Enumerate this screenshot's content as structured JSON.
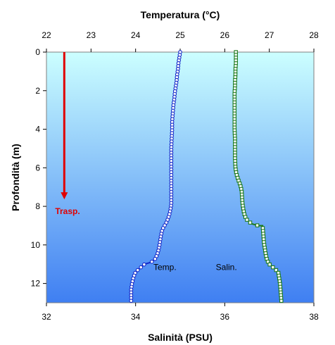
{
  "chart_data": {
    "type": "line",
    "top_axis": {
      "label": "Temperatura (°C)",
      "range": [
        22,
        28
      ],
      "ticks": [
        22,
        23,
        24,
        25,
        26,
        27,
        28
      ]
    },
    "bottom_axis": {
      "label": "Salinità (PSU)",
      "range": [
        32,
        38
      ],
      "ticks": [
        32,
        34,
        36,
        38
      ]
    },
    "left_axis": {
      "label": "Profondità (m)",
      "range": [
        0,
        13
      ],
      "inverted": true,
      "ticks": [
        0,
        2,
        4,
        6,
        8,
        10,
        12
      ]
    },
    "colors": {
      "temperature": "#1428c8",
      "salinity": "#1e7a1e",
      "arrow": "#e00000",
      "bg_top": "#ccffff",
      "bg_bottom": "#3f7ff2"
    },
    "series": [
      {
        "name": "Temp.",
        "axis": "top",
        "marker": "circle",
        "points": [
          [
            25.0,
            0.0
          ],
          [
            24.98,
            0.3
          ],
          [
            24.96,
            0.6
          ],
          [
            24.95,
            0.9
          ],
          [
            24.93,
            1.2
          ],
          [
            24.92,
            1.5
          ],
          [
            24.9,
            1.8
          ],
          [
            24.88,
            2.1
          ],
          [
            24.87,
            2.4
          ],
          [
            24.85,
            2.7
          ],
          [
            24.84,
            3.0
          ],
          [
            24.83,
            3.3
          ],
          [
            24.82,
            3.6
          ],
          [
            24.82,
            4.0
          ],
          [
            24.81,
            4.5
          ],
          [
            24.8,
            5.0
          ],
          [
            24.8,
            5.5
          ],
          [
            24.8,
            6.0
          ],
          [
            24.8,
            6.5
          ],
          [
            24.8,
            7.0
          ],
          [
            24.8,
            7.3
          ],
          [
            24.8,
            7.6
          ],
          [
            24.8,
            7.9
          ],
          [
            24.78,
            8.2
          ],
          [
            24.75,
            8.5
          ],
          [
            24.7,
            8.8
          ],
          [
            24.65,
            9.0
          ],
          [
            24.6,
            9.2
          ],
          [
            24.57,
            9.5
          ],
          [
            24.55,
            9.8
          ],
          [
            24.53,
            10.1
          ],
          [
            24.5,
            10.4
          ],
          [
            24.45,
            10.7
          ],
          [
            24.35,
            10.9
          ],
          [
            24.2,
            11.0
          ],
          [
            24.1,
            11.2
          ],
          [
            24.0,
            11.4
          ],
          [
            23.95,
            11.7
          ],
          [
            23.92,
            12.0
          ],
          [
            23.9,
            12.3
          ],
          [
            23.9,
            12.6
          ],
          [
            23.9,
            12.9
          ]
        ],
        "label_text": "Temp."
      },
      {
        "name": "Salin.",
        "axis": "bottom",
        "marker": "square",
        "points": [
          [
            36.25,
            0.0
          ],
          [
            36.25,
            0.3
          ],
          [
            36.25,
            0.6
          ],
          [
            36.24,
            0.9
          ],
          [
            36.24,
            1.2
          ],
          [
            36.23,
            1.5
          ],
          [
            36.23,
            1.8
          ],
          [
            36.22,
            2.1
          ],
          [
            36.22,
            2.4
          ],
          [
            36.22,
            2.7
          ],
          [
            36.22,
            3.0
          ],
          [
            36.22,
            3.3
          ],
          [
            36.22,
            3.6
          ],
          [
            36.22,
            4.0
          ],
          [
            36.23,
            4.5
          ],
          [
            36.23,
            5.0
          ],
          [
            36.23,
            5.5
          ],
          [
            36.24,
            6.0
          ],
          [
            36.26,
            6.3
          ],
          [
            36.3,
            6.6
          ],
          [
            36.35,
            6.9
          ],
          [
            36.38,
            7.2
          ],
          [
            36.39,
            7.6
          ],
          [
            36.4,
            7.9
          ],
          [
            36.42,
            8.2
          ],
          [
            36.45,
            8.5
          ],
          [
            36.5,
            8.7
          ],
          [
            36.6,
            8.9
          ],
          [
            36.75,
            9.0
          ],
          [
            36.85,
            9.0
          ],
          [
            36.86,
            9.3
          ],
          [
            36.87,
            9.6
          ],
          [
            36.88,
            9.9
          ],
          [
            36.9,
            10.2
          ],
          [
            36.92,
            10.5
          ],
          [
            36.95,
            10.8
          ],
          [
            37.0,
            11.0
          ],
          [
            37.1,
            11.2
          ],
          [
            37.2,
            11.4
          ],
          [
            37.22,
            11.7
          ],
          [
            37.24,
            12.0
          ],
          [
            37.25,
            12.3
          ],
          [
            37.26,
            12.6
          ],
          [
            37.27,
            12.9
          ]
        ],
        "label_text": "Salin."
      }
    ],
    "annotations": [
      {
        "text": "Trasp.",
        "color": "#e00000",
        "arrow_from_depth": 0,
        "arrow_to_depth": 7.6,
        "temp_position": 22.4
      }
    ]
  }
}
